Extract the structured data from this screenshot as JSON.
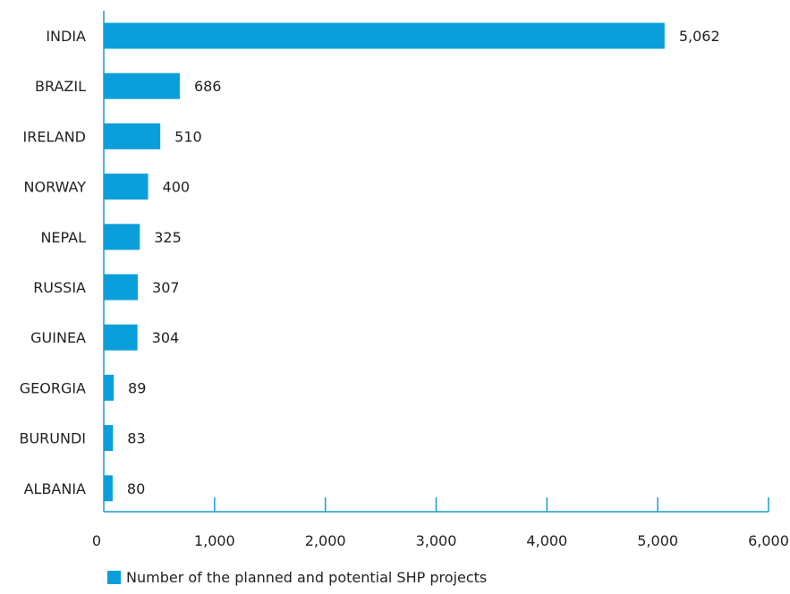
{
  "chart_data": {
    "type": "bar",
    "orientation": "horizontal",
    "categories": [
      "INDIA",
      "BRAZIL",
      "IRELAND",
      "NORWAY",
      "NEPAL",
      "RUSSIA",
      "GUINEA",
      "GEORGIA",
      "BURUNDI",
      "ALBANIA"
    ],
    "series": [
      {
        "name": "Number of the planned and potential SHP projects",
        "values": [
          5062,
          686,
          510,
          400,
          325,
          307,
          304,
          89,
          83,
          80
        ],
        "value_labels": [
          "5,062",
          "686",
          "510",
          "400",
          "325",
          "307",
          "304",
          "89",
          "83",
          "80"
        ]
      }
    ],
    "xlim": [
      0,
      6000
    ],
    "x_ticks": [
      0,
      1000,
      2000,
      3000,
      4000,
      5000,
      6000
    ],
    "x_tick_labels": [
      "0",
      "1,000",
      "2,000",
      "3,000",
      "4,000",
      "5,000",
      "6,000"
    ],
    "title": "",
    "xlabel": "",
    "ylabel": "",
    "grid": false,
    "legend_position": "bottom-left",
    "bar_color": "#0a9fdb",
    "axis_color": "#1a9bd0"
  }
}
